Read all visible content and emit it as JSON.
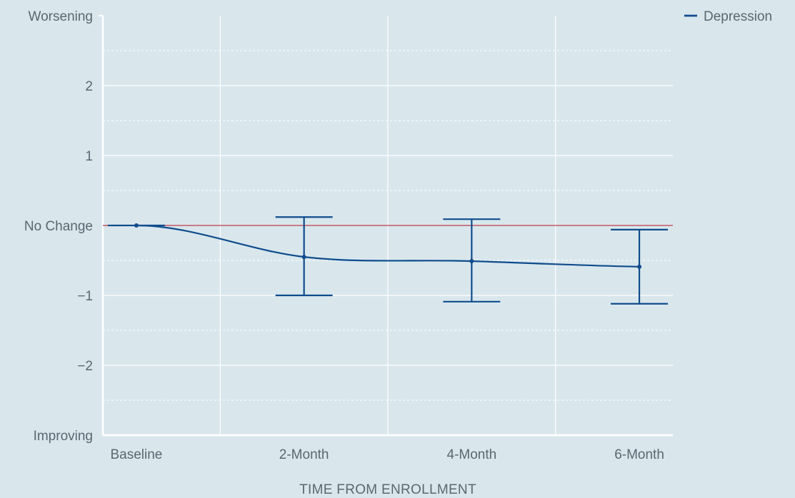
{
  "chart_data": {
    "type": "line",
    "xlabel": "TIME FROM ENROLLMENT",
    "ylabel": "",
    "categories": [
      "Baseline",
      "2-Month",
      "4-Month",
      "6-Month"
    ],
    "x_positions": [
      0.2,
      1.2,
      2.2,
      3.2
    ],
    "xlim": [
      0,
      3.4
    ],
    "ylim": [
      -3,
      3
    ],
    "y_ticks": [
      {
        "value": 3,
        "label": "Worsening"
      },
      {
        "value": 2,
        "label": "2"
      },
      {
        "value": 1,
        "label": "1"
      },
      {
        "value": 0,
        "label": "No Change"
      },
      {
        "value": -1,
        "label": "−1"
      },
      {
        "value": -2,
        "label": "−2"
      },
      {
        "value": -3,
        "label": "Improving"
      }
    ],
    "y_minor_gridlines": [
      2.5,
      1.5,
      0.5,
      -0.5,
      -1.5,
      -2.5
    ],
    "grid": true,
    "reference_line": {
      "value": 0,
      "color": "#c0394b"
    },
    "legend_position": "top-right",
    "series": [
      {
        "name": "Depression",
        "color": "#0f4c8c",
        "values": [
          0,
          -0.45,
          -0.51,
          -0.59
        ],
        "error_low": [
          0,
          -1.0,
          -1.09,
          -1.12
        ],
        "error_high": [
          0,
          0.12,
          0.09,
          -0.06
        ]
      }
    ]
  }
}
